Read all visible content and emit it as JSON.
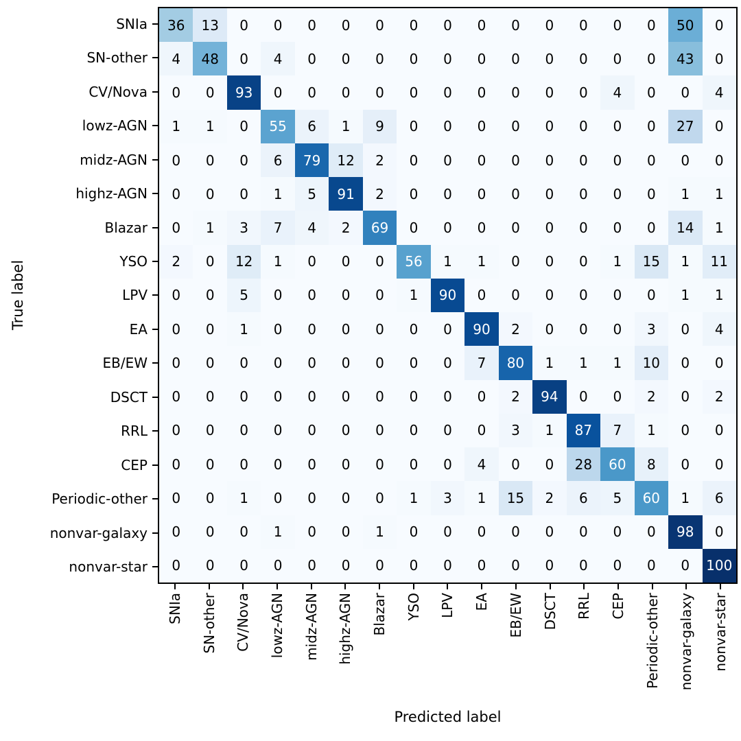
{
  "chart_data": {
    "type": "heatmap",
    "title": "",
    "xlabel": "Predicted label",
    "ylabel": "True label",
    "categories": [
      "SNIa",
      "SN-other",
      "CV/Nova",
      "lowz-AGN",
      "midz-AGN",
      "highz-AGN",
      "Blazar",
      "YSO",
      "LPV",
      "EA",
      "EB/EW",
      "DSCT",
      "RRL",
      "CEP",
      "Periodic-other",
      "nonvar-galaxy",
      "nonvar-star"
    ],
    "matrix": [
      [
        36,
        13,
        0,
        0,
        0,
        0,
        0,
        0,
        0,
        0,
        0,
        0,
        0,
        0,
        0,
        50,
        0
      ],
      [
        4,
        48,
        0,
        4,
        0,
        0,
        0,
        0,
        0,
        0,
        0,
        0,
        0,
        0,
        0,
        43,
        0
      ],
      [
        0,
        0,
        93,
        0,
        0,
        0,
        0,
        0,
        0,
        0,
        0,
        0,
        0,
        4,
        0,
        0,
        4
      ],
      [
        1,
        1,
        0,
        55,
        6,
        1,
        9,
        0,
        0,
        0,
        0,
        0,
        0,
        0,
        0,
        27,
        0
      ],
      [
        0,
        0,
        0,
        6,
        79,
        12,
        2,
        0,
        0,
        0,
        0,
        0,
        0,
        0,
        0,
        0,
        0
      ],
      [
        0,
        0,
        0,
        1,
        5,
        91,
        2,
        0,
        0,
        0,
        0,
        0,
        0,
        0,
        0,
        1,
        1
      ],
      [
        0,
        1,
        3,
        7,
        4,
        2,
        69,
        0,
        0,
        0,
        0,
        0,
        0,
        0,
        0,
        14,
        1
      ],
      [
        2,
        0,
        12,
        1,
        0,
        0,
        0,
        56,
        1,
        1,
        0,
        0,
        0,
        1,
        15,
        1,
        11
      ],
      [
        0,
        0,
        5,
        0,
        0,
        0,
        0,
        1,
        90,
        0,
        0,
        0,
        0,
        0,
        0,
        1,
        1
      ],
      [
        0,
        0,
        1,
        0,
        0,
        0,
        0,
        0,
        0,
        90,
        2,
        0,
        0,
        0,
        3,
        0,
        4
      ],
      [
        0,
        0,
        0,
        0,
        0,
        0,
        0,
        0,
        0,
        7,
        80,
        1,
        1,
        1,
        10,
        0,
        0
      ],
      [
        0,
        0,
        0,
        0,
        0,
        0,
        0,
        0,
        0,
        0,
        2,
        94,
        0,
        0,
        2,
        0,
        2
      ],
      [
        0,
        0,
        0,
        0,
        0,
        0,
        0,
        0,
        0,
        0,
        3,
        1,
        87,
        7,
        1,
        0,
        0
      ],
      [
        0,
        0,
        0,
        0,
        0,
        0,
        0,
        0,
        0,
        4,
        0,
        0,
        28,
        60,
        8,
        0,
        0
      ],
      [
        0,
        0,
        1,
        0,
        0,
        0,
        0,
        1,
        3,
        1,
        15,
        2,
        6,
        5,
        60,
        1,
        6
      ],
      [
        0,
        0,
        0,
        1,
        0,
        0,
        1,
        0,
        0,
        0,
        0,
        0,
        0,
        0,
        0,
        98,
        0
      ],
      [
        0,
        0,
        0,
        0,
        0,
        0,
        0,
        0,
        0,
        0,
        0,
        0,
        0,
        0,
        0,
        0,
        100
      ]
    ],
    "vmin": 0,
    "vmax": 100,
    "text_color_threshold": 50,
    "grid": false,
    "legend": "none",
    "colors": {
      "colormap_name": "Blues",
      "colormap_anchors": [
        "#f7fbff",
        "#deebf7",
        "#c6dbef",
        "#9ecae1",
        "#6baed6",
        "#4292c6",
        "#2171b5",
        "#08519c",
        "#08306b"
      ],
      "text_dark": "#000000",
      "text_light": "#ffffff",
      "spine": "#000000",
      "background": "#ffffff"
    }
  }
}
